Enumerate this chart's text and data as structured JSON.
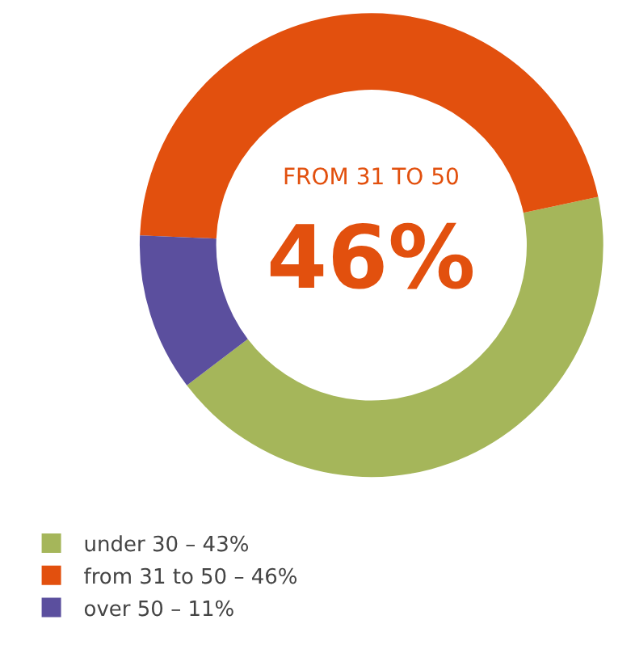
{
  "chart_data": {
    "type": "donut",
    "categories": [
      "under 30 – 43%",
      "from 31 to 50 – 46%",
      "over 50 – 11%"
    ],
    "values": [
      43,
      46,
      11
    ],
    "colors": [
      "#a5b65a",
      "#e2500e",
      "#5b4f9e"
    ],
    "annotations": [
      "FROM 31 TO 50",
      "46%"
    ],
    "legend": "bottom left"
  }
}
